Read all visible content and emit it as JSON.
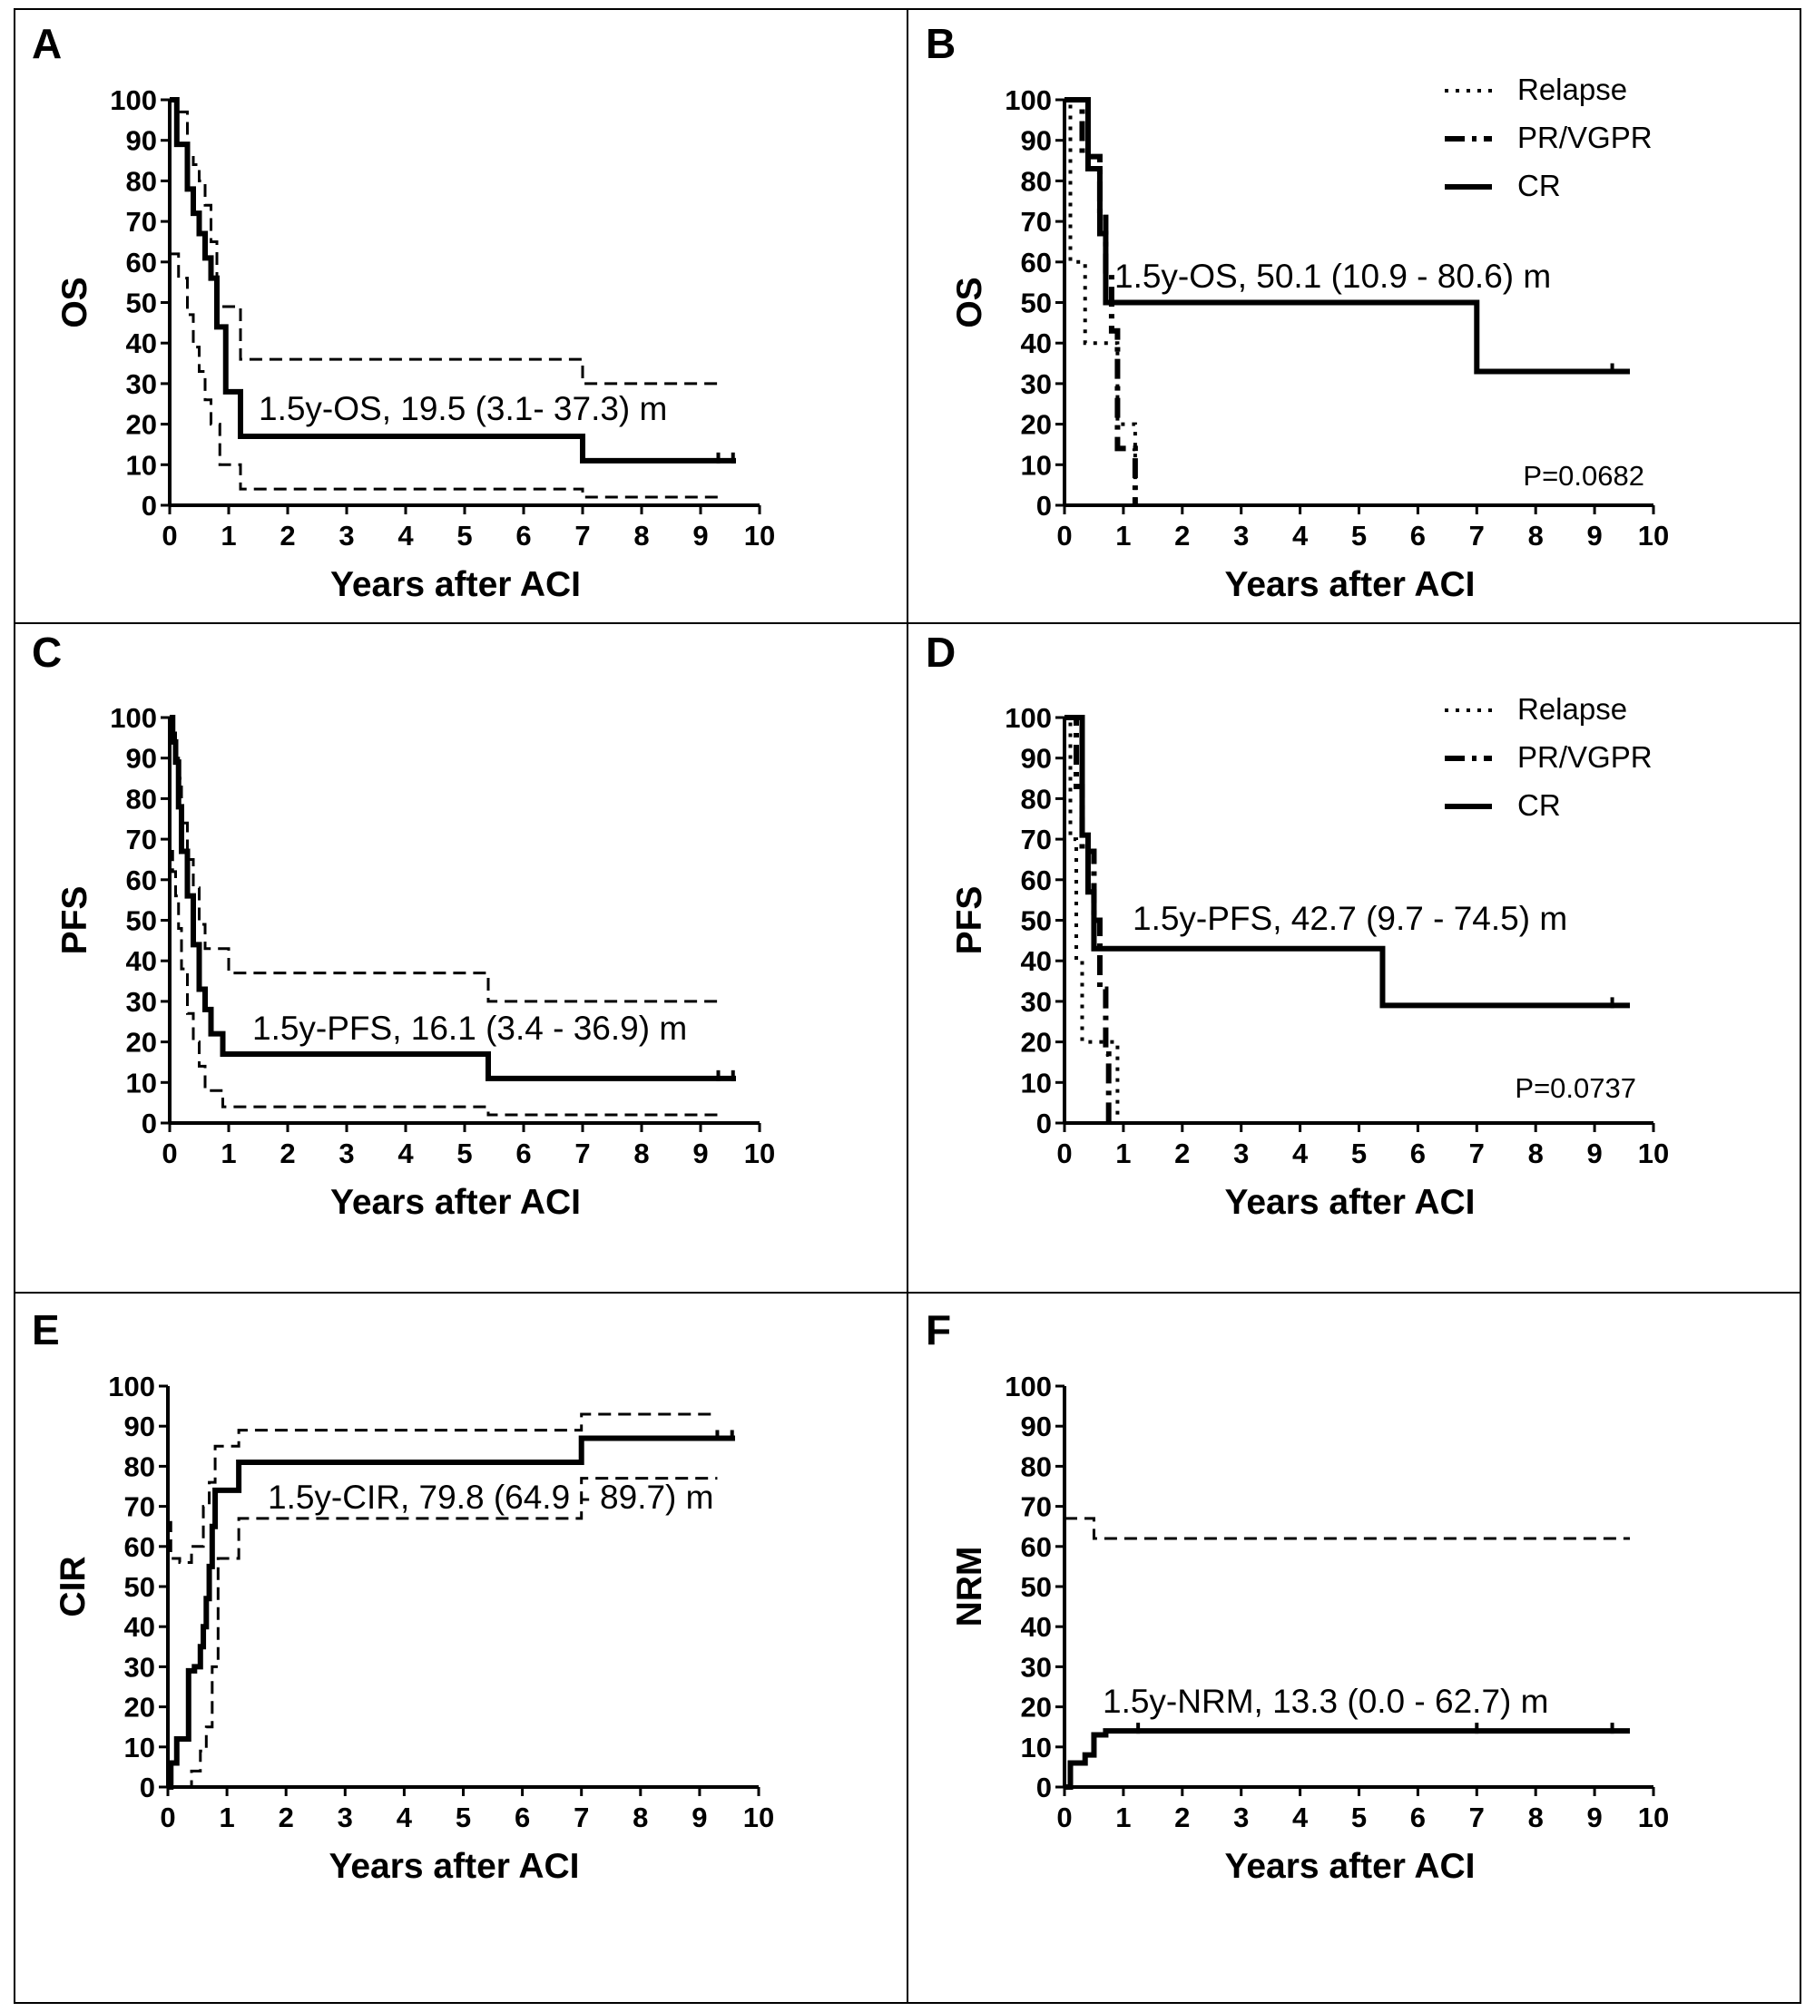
{
  "chart_data": [
    {
      "panel": "A",
      "type": "line",
      "ylabel": "OS",
      "xlabel": "Years after ACI",
      "xlim": [
        0,
        10
      ],
      "ylim": [
        0,
        100
      ],
      "x_ticks": [
        "0",
        "1",
        "2",
        "3",
        "4",
        "5",
        "6",
        "7",
        "8",
        "9",
        "10"
      ],
      "y_ticks": [
        "0",
        "10",
        "20",
        "30",
        "40",
        "50",
        "60",
        "70",
        "80",
        "90",
        "100"
      ],
      "annotation": "1.5y-OS, 19.5 (3.1- 37.3) m",
      "series": [
        {
          "style": "solid",
          "step": true,
          "x": [
            0,
            0.12,
            0.3,
            0.4,
            0.5,
            0.6,
            0.7,
            0.8,
            0.95,
            1.2,
            7.0,
            9.6
          ],
          "y": [
            100,
            89,
            78,
            72,
            67,
            61,
            56,
            44,
            28,
            17,
            11,
            11
          ]
        },
        {
          "style": "dashed",
          "step": true,
          "x": [
            0,
            0.12,
            0.3,
            0.4,
            0.5,
            0.6,
            0.7,
            0.8,
            1.2,
            7.0,
            9.3
          ],
          "y": [
            100,
            97,
            87,
            84,
            80,
            74,
            65,
            49,
            36,
            30,
            30
          ]
        },
        {
          "style": "dashed",
          "step": true,
          "x": [
            0,
            0.15,
            0.3,
            0.4,
            0.5,
            0.6,
            0.7,
            0.85,
            1.2,
            7.0,
            9.3
          ],
          "y": [
            62,
            56,
            47,
            39,
            33,
            26,
            20,
            10,
            4,
            2,
            2
          ]
        }
      ],
      "censor_marks": [
        {
          "x": 9.3,
          "y": 11
        },
        {
          "x": 9.55,
          "y": 11
        }
      ]
    },
    {
      "panel": "B",
      "type": "line",
      "ylabel": "OS",
      "xlabel": "Years after ACI",
      "xlim": [
        0,
        10
      ],
      "ylim": [
        0,
        100
      ],
      "x_ticks": [
        "0",
        "1",
        "2",
        "3",
        "4",
        "5",
        "6",
        "7",
        "8",
        "9",
        "10"
      ],
      "y_ticks": [
        "0",
        "10",
        "20",
        "30",
        "40",
        "50",
        "60",
        "70",
        "80",
        "90",
        "100"
      ],
      "annotation": "1.5y-OS, 50.1 (10.9 - 80.6) m",
      "pvalue": "P=0.0682",
      "legend": [
        "Relapse",
        "PR/VGPR",
        "CR"
      ],
      "series": [
        {
          "name": "Relapse",
          "style": "dotted",
          "step": true,
          "x": [
            0,
            0.1,
            0.2,
            0.35,
            0.8,
            0.9,
            1.2
          ],
          "y": [
            100,
            60,
            60,
            40,
            40,
            20,
            0
          ]
        },
        {
          "name": "PR/VGPR",
          "style": "dashdot",
          "step": true,
          "x": [
            0,
            0.3,
            0.5,
            0.6,
            0.7,
            0.8,
            0.9,
            1.0,
            1.2
          ],
          "y": [
            100,
            86,
            86,
            71,
            57,
            43,
            14,
            14,
            0
          ]
        },
        {
          "name": "CR",
          "style": "solid",
          "step": true,
          "x": [
            0,
            0.4,
            0.5,
            0.6,
            0.7,
            7.0,
            9.6
          ],
          "y": [
            100,
            83,
            83,
            67,
            50,
            33,
            33
          ]
        }
      ],
      "censor_marks": [
        {
          "x": 9.3,
          "y": 33
        }
      ]
    },
    {
      "panel": "C",
      "type": "line",
      "ylabel": "PFS",
      "xlabel": "Years after ACI",
      "xlim": [
        0,
        10
      ],
      "ylim": [
        0,
        100
      ],
      "x_ticks": [
        "0",
        "1",
        "2",
        "3",
        "4",
        "5",
        "6",
        "7",
        "8",
        "9",
        "10"
      ],
      "y_ticks": [
        "0",
        "10",
        "20",
        "30",
        "40",
        "50",
        "60",
        "70",
        "80",
        "90",
        "100"
      ],
      "annotation": "1.5y-PFS, 16.1 (3.4 - 36.9) m",
      "series": [
        {
          "style": "solid",
          "step": true,
          "x": [
            0,
            0.05,
            0.1,
            0.15,
            0.2,
            0.3,
            0.4,
            0.5,
            0.6,
            0.7,
            0.9,
            5.4,
            9.6
          ],
          "y": [
            100,
            94,
            89,
            78,
            67,
            56,
            44,
            33,
            28,
            22,
            17,
            11,
            11
          ]
        },
        {
          "style": "dashed",
          "step": true,
          "x": [
            0,
            0.05,
            0.1,
            0.15,
            0.2,
            0.3,
            0.4,
            0.5,
            0.6,
            0.9,
            1.0,
            5.4,
            9.3
          ],
          "y": [
            100,
            97,
            90,
            85,
            74,
            65,
            58,
            49,
            43,
            43,
            37,
            30,
            30
          ]
        },
        {
          "style": "dashed",
          "step": true,
          "x": [
            0,
            0.05,
            0.1,
            0.15,
            0.2,
            0.3,
            0.4,
            0.5,
            0.6,
            0.9,
            5.4,
            9.3
          ],
          "y": [
            67,
            62,
            56,
            48,
            38,
            27,
            20,
            14,
            8,
            4,
            2,
            2
          ]
        }
      ],
      "censor_marks": [
        {
          "x": 9.3,
          "y": 11
        },
        {
          "x": 9.55,
          "y": 11
        }
      ]
    },
    {
      "panel": "D",
      "type": "line",
      "ylabel": "PFS",
      "xlabel": "Years after ACI",
      "xlim": [
        0,
        10
      ],
      "ylim": [
        0,
        100
      ],
      "x_ticks": [
        "0",
        "1",
        "2",
        "3",
        "4",
        "5",
        "6",
        "7",
        "8",
        "9",
        "10"
      ],
      "y_ticks": [
        "0",
        "10",
        "20",
        "30",
        "40",
        "50",
        "60",
        "70",
        "80",
        "90",
        "100"
      ],
      "annotation": "1.5y-PFS, 42.7 (9.7 - 74.5) m",
      "pvalue": "P=0.0737",
      "legend": [
        "Relapse",
        "PR/VGPR",
        "CR"
      ],
      "series": [
        {
          "name": "Relapse",
          "style": "dotted",
          "step": true,
          "x": [
            0,
            0.1,
            0.2,
            0.3,
            0.5,
            0.7,
            0.9
          ],
          "y": [
            100,
            70,
            40,
            20,
            20,
            20,
            0
          ]
        },
        {
          "name": "PR/VGPR",
          "style": "dashdot",
          "step": true,
          "x": [
            0,
            0.2,
            0.3,
            0.4,
            0.5,
            0.6,
            0.7,
            0.75
          ],
          "y": [
            100,
            83,
            67,
            67,
            50,
            33,
            17,
            0
          ]
        },
        {
          "name": "CR",
          "style": "solid",
          "step": true,
          "x": [
            0,
            0.3,
            0.4,
            0.5,
            5.4,
            9.6
          ],
          "y": [
            100,
            71,
            57,
            43,
            29,
            29
          ]
        }
      ],
      "censor_marks": [
        {
          "x": 9.3,
          "y": 29
        }
      ]
    },
    {
      "panel": "E",
      "type": "line",
      "ylabel": "CIR",
      "xlabel": "Years after ACI",
      "xlim": [
        0,
        10
      ],
      "ylim": [
        0,
        100
      ],
      "x_ticks": [
        "0",
        "1",
        "2",
        "3",
        "4",
        "5",
        "6",
        "7",
        "8",
        "9",
        "10"
      ],
      "y_ticks": [
        "0",
        "10",
        "20",
        "30",
        "40",
        "50",
        "60",
        "70",
        "80",
        "90",
        "100"
      ],
      "annotation": "1.5y-CIR, 79.8 (64.9 - 89.7) m",
      "series": [
        {
          "style": "solid",
          "step": true,
          "x": [
            0,
            0.05,
            0.15,
            0.35,
            0.45,
            0.55,
            0.6,
            0.65,
            0.7,
            0.75,
            0.8,
            1.2,
            7.0,
            9.6
          ],
          "y": [
            0,
            6,
            12,
            29,
            30,
            35,
            40,
            47,
            55,
            65,
            74,
            81,
            87,
            87
          ]
        },
        {
          "style": "dashed",
          "step": true,
          "x": [
            0,
            0.05,
            0.2,
            0.4,
            0.6,
            0.7,
            0.8,
            1.2,
            7.0,
            9.3
          ],
          "y": [
            66,
            57,
            56,
            60,
            70,
            76,
            85,
            89,
            93,
            93
          ]
        },
        {
          "style": "dashed",
          "step": true,
          "x": [
            0.3,
            0.4,
            0.55,
            0.65,
            0.75,
            0.85,
            1.2,
            7.0,
            9.3
          ],
          "y": [
            0,
            4,
            9,
            15,
            30,
            57,
            67,
            77,
            77
          ]
        }
      ],
      "censor_marks": [
        {
          "x": 9.3,
          "y": 87
        },
        {
          "x": 9.55,
          "y": 87
        }
      ]
    },
    {
      "panel": "F",
      "type": "line",
      "ylabel": "NRM",
      "xlabel": "Years after ACI",
      "xlim": [
        0,
        10
      ],
      "ylim": [
        0,
        100
      ],
      "x_ticks": [
        "0",
        "1",
        "2",
        "3",
        "4",
        "5",
        "6",
        "7",
        "8",
        "9",
        "10"
      ],
      "y_ticks": [
        "0",
        "10",
        "20",
        "30",
        "40",
        "50",
        "60",
        "70",
        "80",
        "90",
        "100"
      ],
      "annotation": "1.5y-NRM, 13.3 (0.0 - 62.7) m",
      "series": [
        {
          "style": "solid",
          "step": true,
          "x": [
            0,
            0.1,
            0.35,
            0.5,
            0.7,
            9.6
          ],
          "y": [
            0,
            6,
            8,
            13,
            14,
            14
          ]
        },
        {
          "style": "dashed",
          "step": true,
          "x": [
            0,
            0.5,
            9.6
          ],
          "y": [
            67,
            62,
            62
          ]
        }
      ],
      "censor_marks": [
        {
          "x": 1.25,
          "y": 14
        },
        {
          "x": 7.0,
          "y": 14
        },
        {
          "x": 9.3,
          "y": 14
        }
      ]
    }
  ]
}
